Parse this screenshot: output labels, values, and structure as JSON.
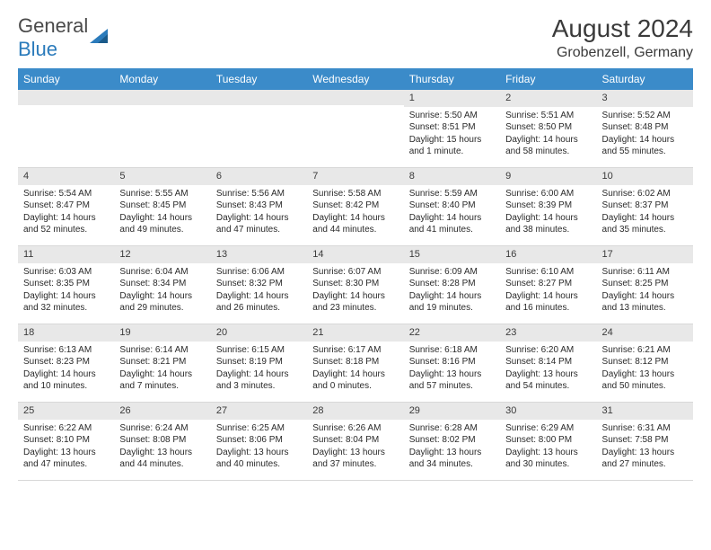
{
  "logo": {
    "general": "General",
    "blue": "Blue"
  },
  "title": "August 2024",
  "location": "Grobenzell, Germany",
  "colors": {
    "header_bg": "#3b8bc9",
    "header_text": "#ffffff",
    "daynum_bg": "#e8e8e8",
    "body_text": "#2a2a2a",
    "border": "#d8d8d8"
  },
  "day_names": [
    "Sunday",
    "Monday",
    "Tuesday",
    "Wednesday",
    "Thursday",
    "Friday",
    "Saturday"
  ],
  "weeks": [
    [
      null,
      null,
      null,
      null,
      {
        "n": "1",
        "sr": "Sunrise: 5:50 AM",
        "ss": "Sunset: 8:51 PM",
        "dl": "Daylight: 15 hours and 1 minute."
      },
      {
        "n": "2",
        "sr": "Sunrise: 5:51 AM",
        "ss": "Sunset: 8:50 PM",
        "dl": "Daylight: 14 hours and 58 minutes."
      },
      {
        "n": "3",
        "sr": "Sunrise: 5:52 AM",
        "ss": "Sunset: 8:48 PM",
        "dl": "Daylight: 14 hours and 55 minutes."
      }
    ],
    [
      {
        "n": "4",
        "sr": "Sunrise: 5:54 AM",
        "ss": "Sunset: 8:47 PM",
        "dl": "Daylight: 14 hours and 52 minutes."
      },
      {
        "n": "5",
        "sr": "Sunrise: 5:55 AM",
        "ss": "Sunset: 8:45 PM",
        "dl": "Daylight: 14 hours and 49 minutes."
      },
      {
        "n": "6",
        "sr": "Sunrise: 5:56 AM",
        "ss": "Sunset: 8:43 PM",
        "dl": "Daylight: 14 hours and 47 minutes."
      },
      {
        "n": "7",
        "sr": "Sunrise: 5:58 AM",
        "ss": "Sunset: 8:42 PM",
        "dl": "Daylight: 14 hours and 44 minutes."
      },
      {
        "n": "8",
        "sr": "Sunrise: 5:59 AM",
        "ss": "Sunset: 8:40 PM",
        "dl": "Daylight: 14 hours and 41 minutes."
      },
      {
        "n": "9",
        "sr": "Sunrise: 6:00 AM",
        "ss": "Sunset: 8:39 PM",
        "dl": "Daylight: 14 hours and 38 minutes."
      },
      {
        "n": "10",
        "sr": "Sunrise: 6:02 AM",
        "ss": "Sunset: 8:37 PM",
        "dl": "Daylight: 14 hours and 35 minutes."
      }
    ],
    [
      {
        "n": "11",
        "sr": "Sunrise: 6:03 AM",
        "ss": "Sunset: 8:35 PM",
        "dl": "Daylight: 14 hours and 32 minutes."
      },
      {
        "n": "12",
        "sr": "Sunrise: 6:04 AM",
        "ss": "Sunset: 8:34 PM",
        "dl": "Daylight: 14 hours and 29 minutes."
      },
      {
        "n": "13",
        "sr": "Sunrise: 6:06 AM",
        "ss": "Sunset: 8:32 PM",
        "dl": "Daylight: 14 hours and 26 minutes."
      },
      {
        "n": "14",
        "sr": "Sunrise: 6:07 AM",
        "ss": "Sunset: 8:30 PM",
        "dl": "Daylight: 14 hours and 23 minutes."
      },
      {
        "n": "15",
        "sr": "Sunrise: 6:09 AM",
        "ss": "Sunset: 8:28 PM",
        "dl": "Daylight: 14 hours and 19 minutes."
      },
      {
        "n": "16",
        "sr": "Sunrise: 6:10 AM",
        "ss": "Sunset: 8:27 PM",
        "dl": "Daylight: 14 hours and 16 minutes."
      },
      {
        "n": "17",
        "sr": "Sunrise: 6:11 AM",
        "ss": "Sunset: 8:25 PM",
        "dl": "Daylight: 14 hours and 13 minutes."
      }
    ],
    [
      {
        "n": "18",
        "sr": "Sunrise: 6:13 AM",
        "ss": "Sunset: 8:23 PM",
        "dl": "Daylight: 14 hours and 10 minutes."
      },
      {
        "n": "19",
        "sr": "Sunrise: 6:14 AM",
        "ss": "Sunset: 8:21 PM",
        "dl": "Daylight: 14 hours and 7 minutes."
      },
      {
        "n": "20",
        "sr": "Sunrise: 6:15 AM",
        "ss": "Sunset: 8:19 PM",
        "dl": "Daylight: 14 hours and 3 minutes."
      },
      {
        "n": "21",
        "sr": "Sunrise: 6:17 AM",
        "ss": "Sunset: 8:18 PM",
        "dl": "Daylight: 14 hours and 0 minutes."
      },
      {
        "n": "22",
        "sr": "Sunrise: 6:18 AM",
        "ss": "Sunset: 8:16 PM",
        "dl": "Daylight: 13 hours and 57 minutes."
      },
      {
        "n": "23",
        "sr": "Sunrise: 6:20 AM",
        "ss": "Sunset: 8:14 PM",
        "dl": "Daylight: 13 hours and 54 minutes."
      },
      {
        "n": "24",
        "sr": "Sunrise: 6:21 AM",
        "ss": "Sunset: 8:12 PM",
        "dl": "Daylight: 13 hours and 50 minutes."
      }
    ],
    [
      {
        "n": "25",
        "sr": "Sunrise: 6:22 AM",
        "ss": "Sunset: 8:10 PM",
        "dl": "Daylight: 13 hours and 47 minutes."
      },
      {
        "n": "26",
        "sr": "Sunrise: 6:24 AM",
        "ss": "Sunset: 8:08 PM",
        "dl": "Daylight: 13 hours and 44 minutes."
      },
      {
        "n": "27",
        "sr": "Sunrise: 6:25 AM",
        "ss": "Sunset: 8:06 PM",
        "dl": "Daylight: 13 hours and 40 minutes."
      },
      {
        "n": "28",
        "sr": "Sunrise: 6:26 AM",
        "ss": "Sunset: 8:04 PM",
        "dl": "Daylight: 13 hours and 37 minutes."
      },
      {
        "n": "29",
        "sr": "Sunrise: 6:28 AM",
        "ss": "Sunset: 8:02 PM",
        "dl": "Daylight: 13 hours and 34 minutes."
      },
      {
        "n": "30",
        "sr": "Sunrise: 6:29 AM",
        "ss": "Sunset: 8:00 PM",
        "dl": "Daylight: 13 hours and 30 minutes."
      },
      {
        "n": "31",
        "sr": "Sunrise: 6:31 AM",
        "ss": "Sunset: 7:58 PM",
        "dl": "Daylight: 13 hours and 27 minutes."
      }
    ]
  ]
}
